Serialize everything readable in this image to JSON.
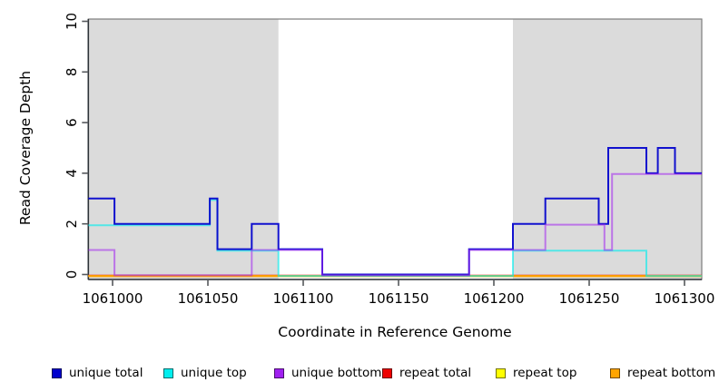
{
  "chart_data": {
    "type": "line",
    "subtype": "step",
    "title": "",
    "xlabel": "Coordinate in Reference Genome",
    "ylabel": "Read Coverage Depth",
    "xlim": [
      1060987,
      1061309
    ],
    "ylim": [
      0,
      10
    ],
    "x_ticks": [
      1061000,
      1061050,
      1061100,
      1061150,
      1061200,
      1061250,
      1061300
    ],
    "y_ticks": [
      0,
      2,
      4,
      6,
      8,
      10
    ],
    "grid": false,
    "legend_position": "bottom",
    "shading_color": "#DBDBDB",
    "shaded_regions": [
      [
        1060987,
        1061087
      ],
      [
        1061210,
        1061309
      ]
    ],
    "series": [
      {
        "name": "unique total",
        "color": "#0000CD",
        "steps": [
          [
            1060987,
            3
          ],
          [
            1061001,
            2
          ],
          [
            1061051,
            3
          ],
          [
            1061055,
            1
          ],
          [
            1061073,
            2
          ],
          [
            1061087,
            1
          ],
          [
            1061110,
            0
          ],
          [
            1061187,
            1
          ],
          [
            1061210,
            2
          ],
          [
            1061227,
            3
          ],
          [
            1061255,
            2
          ],
          [
            1061260,
            5
          ],
          [
            1061280,
            4
          ],
          [
            1061286,
            5
          ],
          [
            1061295,
            4
          ],
          [
            1061309,
            4
          ]
        ]
      },
      {
        "name": "unique top",
        "color": "#00EEEE",
        "steps": [
          [
            1060987,
            2
          ],
          [
            1061051,
            3
          ],
          [
            1061055,
            1
          ],
          [
            1061087,
            0
          ],
          [
            1061210,
            1
          ],
          [
            1061280,
            0
          ],
          [
            1061309,
            0
          ]
        ]
      },
      {
        "name": "unique bottom",
        "color": "#A020F0",
        "steps": [
          [
            1060987,
            1
          ],
          [
            1061001,
            0
          ],
          [
            1061073,
            1
          ],
          [
            1061110,
            0
          ],
          [
            1061187,
            1
          ],
          [
            1061227,
            2
          ],
          [
            1061258,
            1
          ],
          [
            1061262,
            4
          ],
          [
            1061309,
            4
          ]
        ]
      },
      {
        "name": "repeat total",
        "color": "#EE0000",
        "steps": [
          [
            1060987,
            0
          ],
          [
            1061309,
            0
          ]
        ]
      },
      {
        "name": "repeat top",
        "color": "#FFFF00",
        "steps": [
          [
            1060987,
            0
          ],
          [
            1061309,
            0
          ]
        ]
      },
      {
        "name": "repeat bottom",
        "color": "#FFA500",
        "steps": [
          [
            1060987,
            0
          ],
          [
            1061309,
            0
          ]
        ]
      }
    ],
    "legend": [
      {
        "label": "unique total",
        "color": "#0000CD"
      },
      {
        "label": "unique top",
        "color": "#00EEEE"
      },
      {
        "label": "unique bottom",
        "color": "#A020F0"
      },
      {
        "label": "repeat total",
        "color": "#EE0000"
      },
      {
        "label": "repeat top",
        "color": "#FFFF00"
      },
      {
        "label": "repeat bottom",
        "color": "#FFA500"
      }
    ]
  }
}
